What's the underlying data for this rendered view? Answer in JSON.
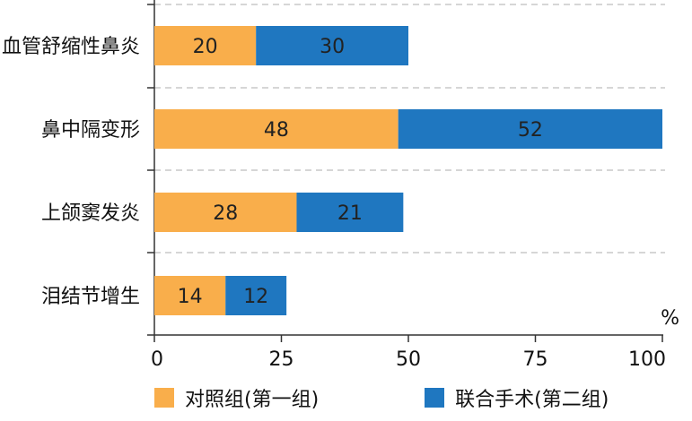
{
  "chart_data": {
    "type": "bar",
    "orientation": "horizontal",
    "stacked": true,
    "title": "",
    "xlabel": "",
    "ylabel": "",
    "unit": "%",
    "categories": [
      "血管舒缩性鼻炎",
      "鼻中隔变形",
      "上颌窦发炎",
      "泪结节增生"
    ],
    "series": [
      {
        "name": "对照组(第一组)",
        "values": [
          20,
          48,
          28,
          14
        ],
        "color": "#F9AE4B"
      },
      {
        "name": "联合手术(第二组)",
        "values": [
          30,
          52,
          21,
          12
        ],
        "color": "#1F77C0"
      }
    ],
    "xlim": [
      0,
      100
    ],
    "xticks": [
      "0",
      "25",
      "50",
      "75",
      "100"
    ],
    "grid": "horizontal-dashed",
    "legend_position": "bottom"
  }
}
